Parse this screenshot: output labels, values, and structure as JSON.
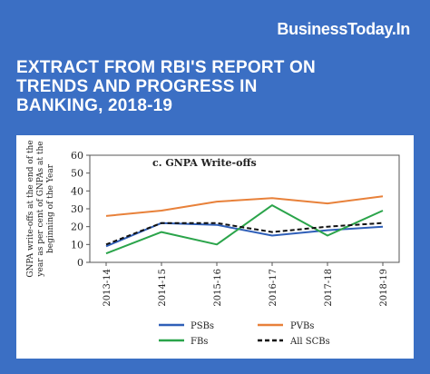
{
  "brand": {
    "logo_text": "BusinessToday.In"
  },
  "headline": {
    "lines": [
      "EXTRACT FROM RBI'S REPORT ON",
      "TRENDS AND PROGRESS IN",
      "BANKING, 2018-19"
    ]
  },
  "colors": {
    "background": "#3b6fc4",
    "PSBs": "#2f5fb8",
    "PVBs": "#e8813a",
    "FBs": "#2aa44a",
    "All SCBs": "#111111"
  },
  "chart_data": {
    "type": "line",
    "title": "c. GNPA Write-offs",
    "ylabel_lines": [
      "GNPA write-offs at the end of the",
      "year as per cent of GNPAs at the",
      "beginning of the Year"
    ],
    "xlabel": "",
    "categories": [
      "2013-14",
      "2014-15",
      "2015-16",
      "2016-17",
      "2017-18",
      "2018-19"
    ],
    "ylim": [
      0,
      60
    ],
    "yticks": [
      0,
      10,
      20,
      30,
      40,
      50,
      60
    ],
    "grid": false,
    "legend_position": "bottom",
    "series": [
      {
        "name": "PSBs",
        "values": [
          9,
          22,
          21,
          15,
          18,
          20
        ],
        "color": "#2f5fb8",
        "dash": "solid"
      },
      {
        "name": "PVBs",
        "values": [
          26,
          29,
          34,
          36,
          33,
          37
        ],
        "color": "#e8813a",
        "dash": "solid"
      },
      {
        "name": "FBs",
        "values": [
          5,
          17,
          10,
          32,
          15,
          29
        ],
        "color": "#2aa44a",
        "dash": "solid"
      },
      {
        "name": "All SCBs",
        "values": [
          10,
          22,
          22,
          17,
          20,
          22
        ],
        "color": "#111111",
        "dash": "dashed"
      }
    ]
  }
}
